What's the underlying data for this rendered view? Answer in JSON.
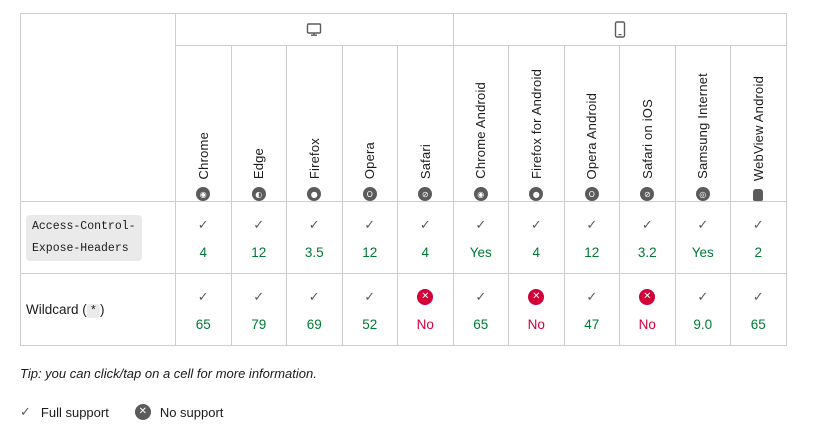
{
  "groups": {
    "desktop_icon": "monitor-icon",
    "mobile_icon": "phone-icon"
  },
  "browsers": [
    {
      "name": "Chrome",
      "icon": "chrome-icon"
    },
    {
      "name": "Edge",
      "icon": "edge-icon"
    },
    {
      "name": "Firefox",
      "icon": "firefox-icon"
    },
    {
      "name": "Opera",
      "icon": "opera-icon"
    },
    {
      "name": "Safari",
      "icon": "safari-icon"
    },
    {
      "name": "Chrome Android",
      "icon": "chrome-icon"
    },
    {
      "name": "Firefox for Android",
      "icon": "firefox-icon"
    },
    {
      "name": "Opera Android",
      "icon": "opera-icon"
    },
    {
      "name": "Safari on iOS",
      "icon": "safari-icon"
    },
    {
      "name": "Samsung Internet",
      "icon": "samsung-internet-icon"
    },
    {
      "name": "WebView Android",
      "icon": "android-icon"
    }
  ],
  "features": [
    {
      "label": "Access-Control-Expose-Headers",
      "label_line1": "Access-Control-",
      "label_line2": "Expose-Headers",
      "support": [
        {
          "status": "yes",
          "version": "4"
        },
        {
          "status": "yes",
          "version": "12"
        },
        {
          "status": "yes",
          "version": "3.5"
        },
        {
          "status": "yes",
          "version": "12"
        },
        {
          "status": "yes",
          "version": "4"
        },
        {
          "status": "yes",
          "version": "Yes"
        },
        {
          "status": "yes",
          "version": "4"
        },
        {
          "status": "yes",
          "version": "12"
        },
        {
          "status": "yes",
          "version": "3.2"
        },
        {
          "status": "yes",
          "version": "Yes"
        },
        {
          "status": "yes",
          "version": "2"
        }
      ]
    },
    {
      "label_prefix": "Wildcard (",
      "label_code": "*",
      "label_suffix": ")",
      "support": [
        {
          "status": "yes",
          "version": "65"
        },
        {
          "status": "yes",
          "version": "79"
        },
        {
          "status": "yes",
          "version": "69"
        },
        {
          "status": "yes",
          "version": "52"
        },
        {
          "status": "no",
          "version": "No"
        },
        {
          "status": "yes",
          "version": "65"
        },
        {
          "status": "no",
          "version": "No"
        },
        {
          "status": "yes",
          "version": "47"
        },
        {
          "status": "no",
          "version": "No"
        },
        {
          "status": "yes",
          "version": "9.0"
        },
        {
          "status": "yes",
          "version": "65"
        }
      ]
    }
  ],
  "tip": "Tip: you can click/tap on a cell for more information.",
  "legend": {
    "full_support": "Full support",
    "no_support": "No support"
  },
  "colors": {
    "yes": "#007936",
    "no": "#d30038",
    "border": "#cdcdcd",
    "icon": "#5b5b5b"
  }
}
